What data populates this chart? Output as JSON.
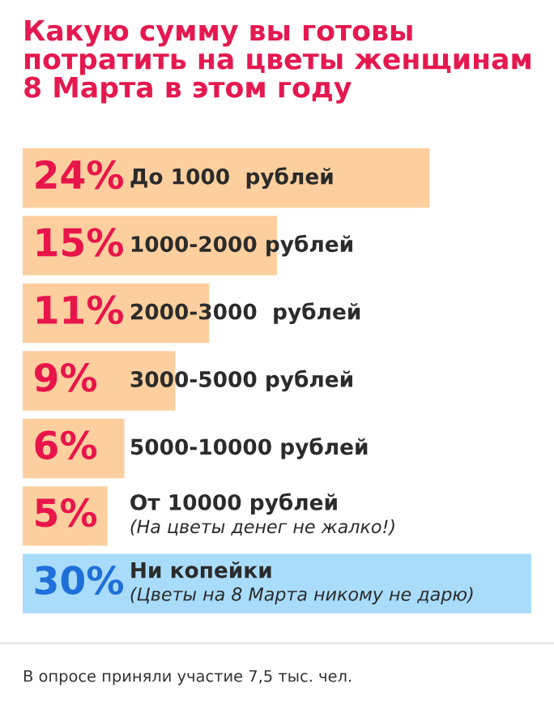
{
  "chart_data": {
    "type": "bar",
    "orientation": "horizontal",
    "title": "Какую сумму вы готовы\nпотратить на цветы женщинам\n8 Марта в этом году",
    "categories": [
      "До 1000  рублей",
      "1000-2000 рублей",
      "2000-3000  рублей",
      "3000-5000 рублей",
      "5000-10000 рублей",
      "От 10000 рублей\n(На цветы денег не жалко!)",
      "Ни копейки\n(Цветы на 8 Марта никому не дарю)"
    ],
    "values": [
      24,
      15,
      11,
      9,
      6,
      5,
      30
    ],
    "colors": [
      "#fdcf9e",
      "#fdcf9e",
      "#fdcf9e",
      "#fdcf9e",
      "#fdcf9e",
      "#fdcf9e",
      "#a9dcfb"
    ],
    "value_labels": [
      "24%",
      "15%",
      "11%",
      "9%",
      "6%",
      "5%",
      "30%"
    ],
    "xlim": [
      0,
      30
    ],
    "annotations": [
      "В опросе приняли участие 7,5 тыс. чел."
    ]
  }
}
